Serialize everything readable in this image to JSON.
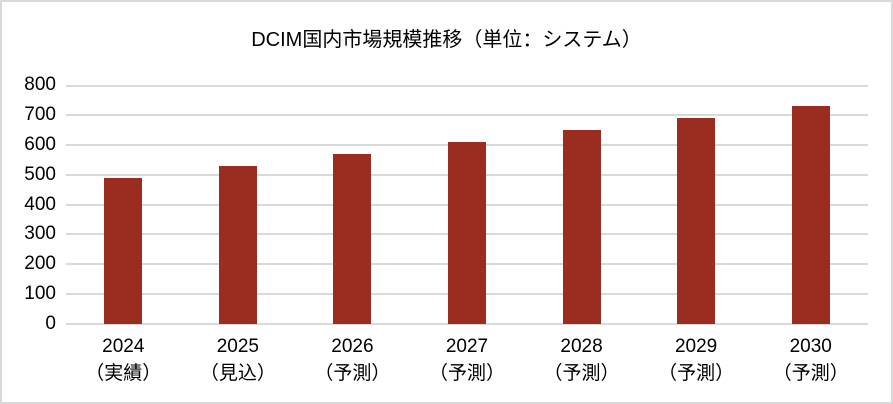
{
  "colors": {
    "bar": "#9A2D1F",
    "gridline": "#D9D9D9",
    "axis_line": "#D9D9D9",
    "text": "#000000",
    "background": "#FFFFFF",
    "border": "#D9D9D9"
  },
  "chart_data": {
    "type": "bar",
    "title": "DCIM国内市場規模推移（単位：システム）",
    "categories": [
      {
        "year": "2024",
        "qualifier": "（実績）"
      },
      {
        "year": "2025",
        "qualifier": "（見込）"
      },
      {
        "year": "2026",
        "qualifier": "（予測）"
      },
      {
        "year": "2027",
        "qualifier": "（予測）"
      },
      {
        "year": "2028",
        "qualifier": "（予測）"
      },
      {
        "year": "2029",
        "qualifier": "（予測）"
      },
      {
        "year": "2030",
        "qualifier": "（予測）"
      }
    ],
    "values": [
      490,
      530,
      570,
      610,
      650,
      690,
      730
    ],
    "xlabel": "",
    "ylabel": "",
    "ylim": [
      0,
      800
    ],
    "ytick_step": 100,
    "ytick_labels": [
      "0",
      "100",
      "200",
      "300",
      "400",
      "500",
      "600",
      "700",
      "800"
    ],
    "grid": true,
    "legend": "none"
  }
}
